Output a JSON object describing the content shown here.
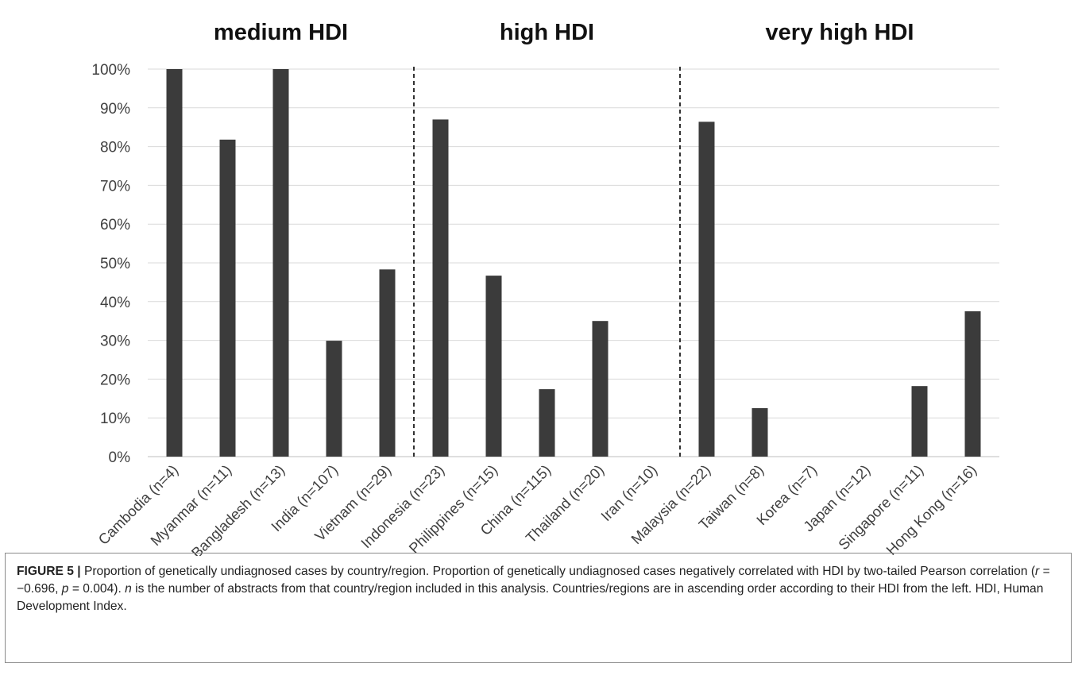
{
  "chart_data": {
    "type": "bar",
    "categories": [
      "Cambodia (n=4)",
      "Myanmar (n=11)",
      "Bangladesh (n=13)",
      "India (n=107)",
      "Vietnam (n=29)",
      "Indonesia (n=23)",
      "Philippines (n=15)",
      "China (n=115)",
      "Thailand (n=20)",
      "Iran (n=10)",
      "Malaysia (n=22)",
      "Taiwan (n=8)",
      "Korea (n=7)",
      "Japan (n=12)",
      "Singapore (n=11)",
      "Hong Kong (n=16)"
    ],
    "values": [
      100,
      81.8,
      100,
      29.9,
      48.3,
      87.0,
      46.7,
      17.4,
      35.0,
      0,
      86.4,
      12.5,
      0,
      0,
      18.2,
      37.5
    ],
    "y_ticks": [
      "0%",
      "10%",
      "20%",
      "30%",
      "40%",
      "50%",
      "60%",
      "70%",
      "80%",
      "90%",
      "100%"
    ],
    "ylim": [
      0,
      100
    ],
    "grid": true,
    "bar_color": "#3b3b3b",
    "groups": [
      {
        "label": "medium HDI",
        "start": 0,
        "end": 4
      },
      {
        "label": "high HDI",
        "start": 5,
        "end": 9
      },
      {
        "label": "very high HDI",
        "start": 10,
        "end": 15
      }
    ],
    "separators_after": [
      4,
      9
    ]
  },
  "caption": {
    "figure_label": "FIGURE 5 |",
    "part1": " Proportion of genetically undiagnosed cases by country/region. Proportion of genetically undiagnosed cases negatively correlated with HDI by two-tailed Pearson correlation (",
    "r_symbol": "r",
    "r_value": " = −0.696, ",
    "p_symbol": "p",
    "p_value": " = 0.004). ",
    "n_symbol": "n",
    "part2": " is the number of abstracts from that country/region included in this analysis. Countries/regions are in ascending order according to their HDI from the left. HDI, Human Development Index."
  }
}
